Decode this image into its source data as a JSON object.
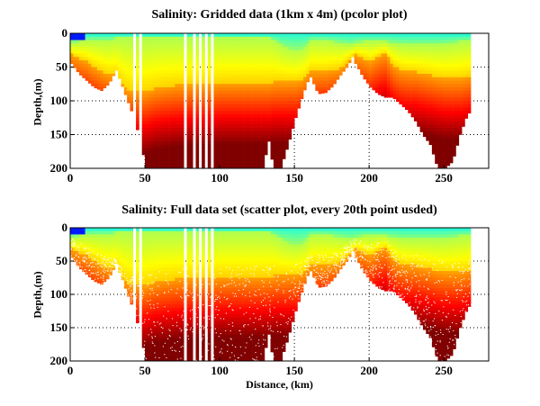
{
  "chart_data": [
    {
      "type": "heatmap",
      "title": "Salinity: Gridded data (1km x 4m) (pcolor plot)",
      "xlabel": "",
      "ylabel": "Depth,(m)",
      "xlim": [
        0,
        280
      ],
      "ylim": [
        200,
        0
      ],
      "xticks": [
        "0",
        "50",
        "100",
        "150",
        "200",
        "250"
      ],
      "yticks": [
        "0",
        "50",
        "100",
        "150",
        "200"
      ],
      "grid": true,
      "style": "pcolor"
    },
    {
      "type": "scatter",
      "title": "Salinity: Full data set (scatter plot, every 20th point usded)",
      "xlabel": "Distance, (km)",
      "ylabel": "Depth,(m)",
      "xlim": [
        0,
        280
      ],
      "ylim": [
        200,
        0
      ],
      "xticks": [
        "0",
        "50",
        "100",
        "150",
        "200",
        "250"
      ],
      "yticks": [
        "0",
        "50",
        "100",
        "150",
        "200"
      ],
      "grid": true,
      "style": "scatter"
    }
  ],
  "section": {
    "distance_km": [
      0,
      5,
      10,
      15,
      20,
      25,
      30,
      35,
      40,
      45,
      50,
      55,
      60,
      70,
      80,
      90,
      100,
      110,
      120,
      128,
      132,
      135,
      140,
      145,
      150,
      155,
      158,
      160,
      165,
      170,
      175,
      180,
      185,
      188,
      190,
      195,
      200,
      205,
      210,
      215,
      220,
      225,
      230,
      235,
      240,
      245,
      250,
      255,
      260,
      265,
      268
    ],
    "bottom_depth_m": [
      45,
      60,
      70,
      80,
      85,
      75,
      55,
      85,
      115,
      150,
      200,
      200,
      200,
      200,
      200,
      200,
      200,
      200,
      200,
      200,
      160,
      200,
      200,
      165,
      125,
      90,
      72,
      65,
      90,
      88,
      78,
      62,
      48,
      35,
      45,
      65,
      80,
      90,
      95,
      95,
      105,
      115,
      130,
      150,
      165,
      200,
      200,
      190,
      150,
      120,
      115
    ],
    "thermocline_depth_m": [
      30,
      35,
      40,
      48,
      55,
      60,
      60,
      78,
      85,
      85,
      85,
      80,
      78,
      75,
      75,
      75,
      72,
      72,
      72,
      72,
      72,
      70,
      70,
      70,
      70,
      66,
      60,
      55,
      55,
      55,
      52,
      50,
      38,
      32,
      30,
      35,
      40,
      32,
      28,
      45,
      52,
      55,
      55,
      58,
      60,
      63,
      65,
      65,
      65,
      62,
      60
    ],
    "surface_layer_m": [
      12,
      10,
      8,
      8,
      8,
      8,
      5,
      5,
      5,
      5,
      5,
      5,
      5,
      5,
      5,
      5,
      5,
      5,
      5,
      5,
      5,
      8,
      15,
      20,
      22,
      20,
      15,
      8,
      8,
      8,
      10,
      12,
      15,
      15,
      12,
      10,
      10,
      10,
      10,
      12,
      14,
      15,
      15,
      15,
      15,
      15,
      14,
      12,
      10,
      10,
      8
    ],
    "data_gaps_km": [
      [
        41,
        43
      ],
      [
        46,
        48
      ],
      [
        51,
        52
      ],
      [
        75,
        77
      ],
      [
        79,
        80
      ],
      [
        82,
        84
      ],
      [
        86,
        87
      ],
      [
        89,
        91
      ],
      [
        94,
        96
      ]
    ],
    "colormap": [
      "#00008f",
      "#0000ff",
      "#00ffff",
      "#80ff80",
      "#ffff00",
      "#ff8000",
      "#ff0000",
      "#800000"
    ]
  }
}
